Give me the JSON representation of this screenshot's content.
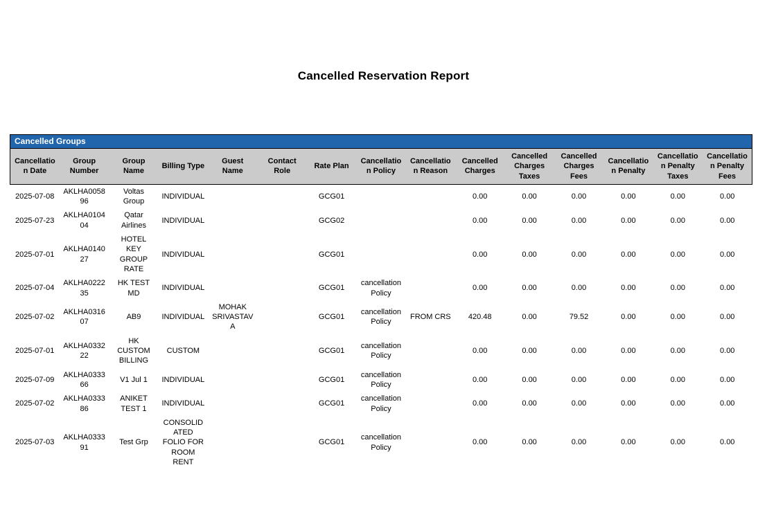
{
  "report": {
    "title": "Cancelled Reservation Report"
  },
  "section": {
    "title": "Cancelled Groups"
  },
  "colors": {
    "band_blue": "#2165AC",
    "header_gray": "#CBCBCB",
    "border": "#000000"
  },
  "table": {
    "columns": [
      "Cancellatio\nn Date",
      "Group\nNumber",
      "Group\nName",
      "Billing Type",
      "Guest\nName",
      "Contact\nRole",
      "Rate Plan",
      "Cancellatio\nn Policy",
      "Cancellatio\nn Reason",
      "Cancelled\nCharges",
      "Cancelled\nCharges\nTaxes",
      "Cancelled\nCharges\nFees",
      "Cancellatio\nn Penalty",
      "Cancellatio\nn Penalty\nTaxes",
      "Cancellatio\nn Penalty\nFees"
    ],
    "rows": [
      [
        "2025-07-08",
        "AKLHA0058\n96",
        "Voltas\nGroup",
        "INDIVIDUAL",
        "",
        "",
        "GCG01",
        "",
        "",
        "0.00",
        "0.00",
        "0.00",
        "0.00",
        "0.00",
        "0.00"
      ],
      [
        "2025-07-23",
        "AKLHA0104\n04",
        "Qatar\nAirlines",
        "INDIVIDUAL",
        "",
        "",
        "GCG02",
        "",
        "",
        "0.00",
        "0.00",
        "0.00",
        "0.00",
        "0.00",
        "0.00"
      ],
      [
        "2025-07-01",
        "AKLHA0140\n27",
        "HOTEL\nKEY\nGROUP\nRATE",
        "INDIVIDUAL",
        "",
        "",
        "GCG01",
        "",
        "",
        "0.00",
        "0.00",
        "0.00",
        "0.00",
        "0.00",
        "0.00"
      ],
      [
        "2025-07-04",
        "AKLHA0222\n35",
        "HK TEST\nMD",
        "INDIVIDUAL",
        "",
        "",
        "GCG01",
        "cancellation\nPolicy",
        "",
        "0.00",
        "0.00",
        "0.00",
        "0.00",
        "0.00",
        "0.00"
      ],
      [
        "2025-07-02",
        "AKLHA0316\n07",
        "AB9",
        "INDIVIDUAL",
        "MOHAK\nSRIVASTAV\nA",
        "",
        "GCG01",
        "cancellation\nPolicy",
        "FROM CRS",
        "420.48",
        "0.00",
        "79.52",
        "0.00",
        "0.00",
        "0.00"
      ],
      [
        "2025-07-01",
        "AKLHA0332\n22",
        "HK\nCUSTOM\nBILLING",
        "CUSTOM",
        "",
        "",
        "GCG01",
        "cancellation\nPolicy",
        "",
        "0.00",
        "0.00",
        "0.00",
        "0.00",
        "0.00",
        "0.00"
      ],
      [
        "2025-07-09",
        "AKLHA0333\n66",
        "V1 Jul 1",
        "INDIVIDUAL",
        "",
        "",
        "GCG01",
        "cancellation\nPolicy",
        "",
        "0.00",
        "0.00",
        "0.00",
        "0.00",
        "0.00",
        "0.00"
      ],
      [
        "2025-07-02",
        "AKLHA0333\n86",
        "ANIKET\nTEST 1",
        "INDIVIDUAL",
        "",
        "",
        "GCG01",
        "cancellation\nPolicy",
        "",
        "0.00",
        "0.00",
        "0.00",
        "0.00",
        "0.00",
        "0.00"
      ],
      [
        "2025-07-03",
        "AKLHA0333\n91",
        "Test Grp",
        "CONSOLID\nATED\nFOLIO FOR\nROOM\nRENT",
        "",
        "",
        "GCG01",
        "cancellation\nPolicy",
        "",
        "0.00",
        "0.00",
        "0.00",
        "0.00",
        "0.00",
        "0.00"
      ]
    ]
  }
}
